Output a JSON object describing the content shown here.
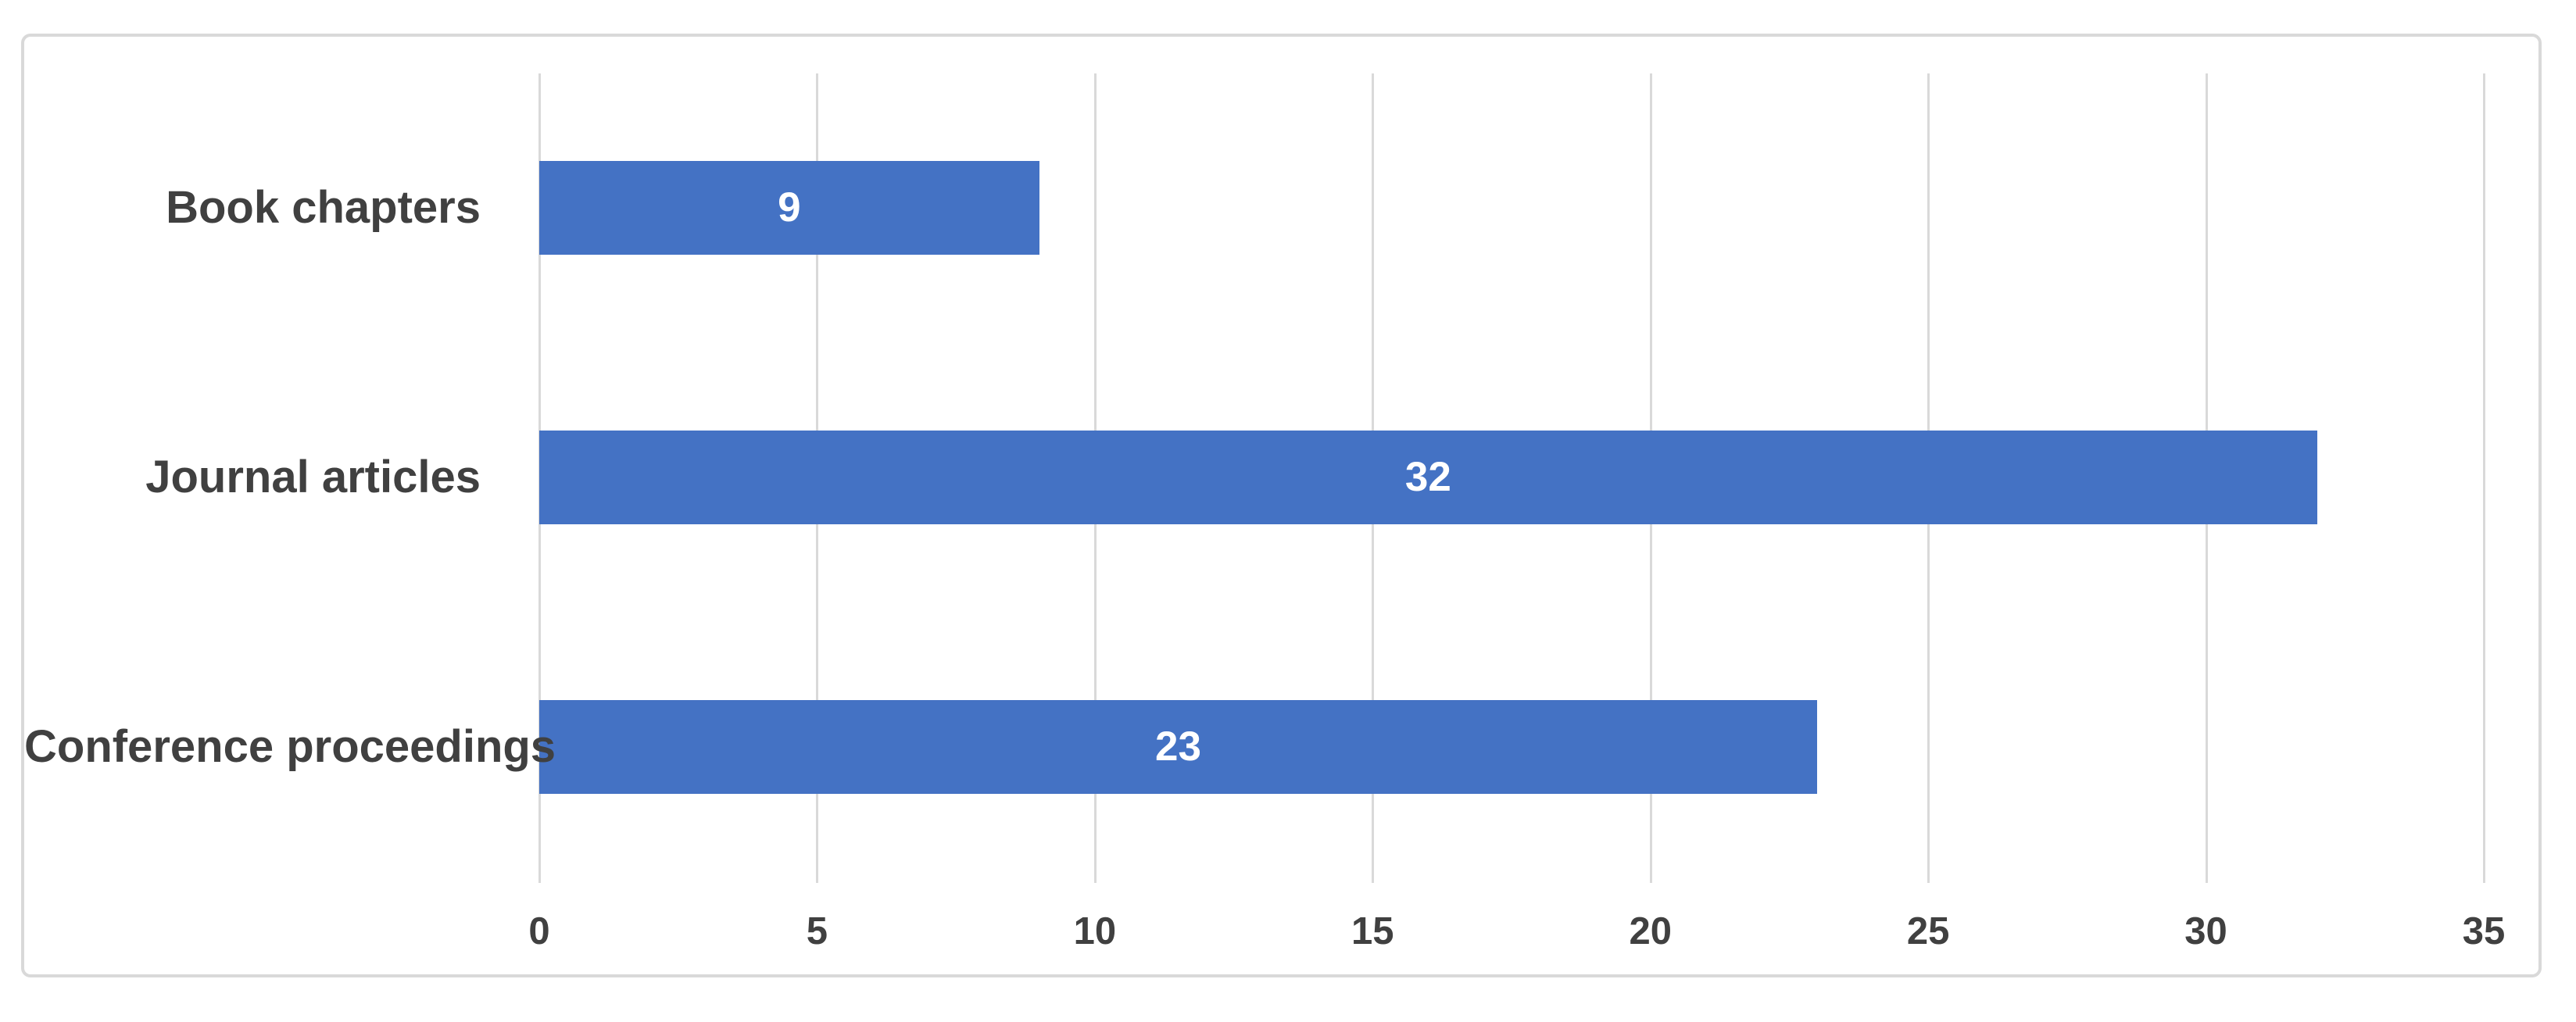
{
  "chart_data": {
    "type": "bar",
    "orientation": "horizontal",
    "title": "",
    "xlabel": "",
    "ylabel": "",
    "categories": [
      "Book chapters",
      "Journal articles",
      "Conference proceedings"
    ],
    "values": [
      9,
      32,
      23
    ],
    "data_labels": [
      "9",
      "32",
      "23"
    ],
    "xlim": [
      0,
      35
    ],
    "xticks": [
      "0",
      "5",
      "10",
      "15",
      "20",
      "25",
      "30",
      "35"
    ],
    "xtick_values": [
      0,
      5,
      10,
      15,
      20,
      25,
      30,
      35
    ],
    "grid": "vertical-gridlines-on",
    "legend": "none",
    "colors": {
      "bar_fill": "#4472c4",
      "bar_value_text": "#ffffff",
      "axis_text": "#404040",
      "category_text": "#404040",
      "gridline": "#d9d9d9",
      "chart_border": "#d9d9d9",
      "background": "#ffffff"
    }
  }
}
